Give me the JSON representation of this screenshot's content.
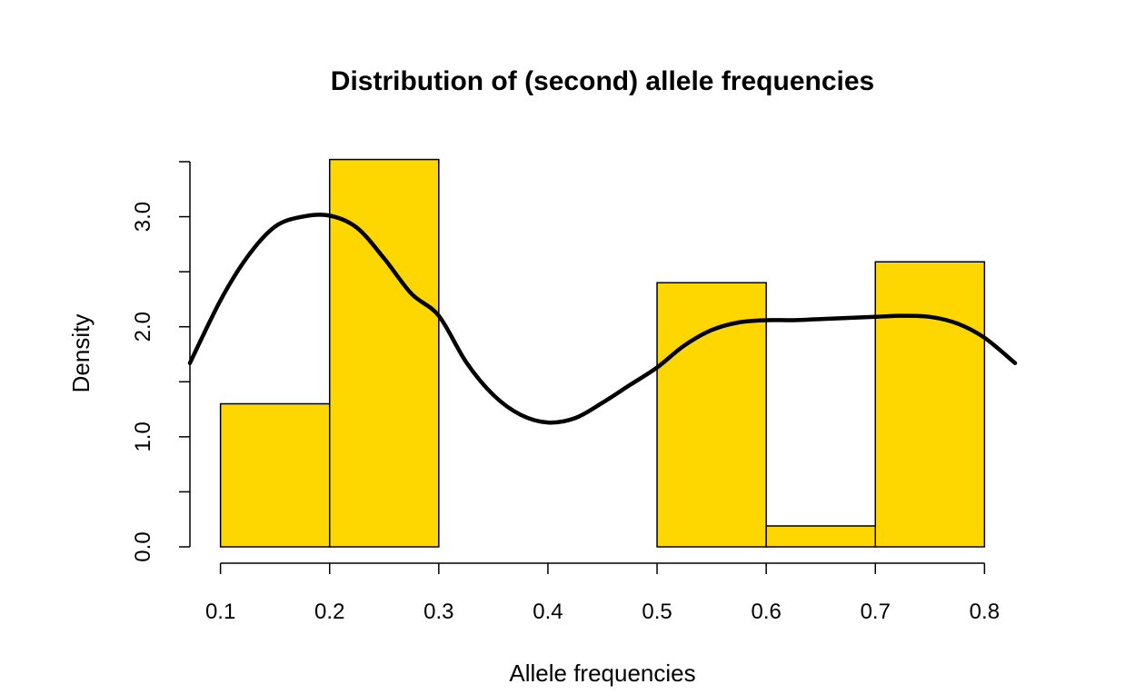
{
  "chart_data": {
    "type": "bar",
    "title": "Distribution of (second) allele frequencies",
    "xlabel": "Allele frequencies",
    "ylabel": "Density",
    "bar_color": "#FFD700",
    "bar_border_color": "#000000",
    "line_color": "#000000",
    "xlim": [
      0.072,
      0.828
    ],
    "ylim": [
      0,
      3.5
    ],
    "x_ticks": [
      0.1,
      0.2,
      0.3,
      0.4,
      0.5,
      0.6,
      0.7,
      0.8
    ],
    "x_tick_labels": [
      "0.1",
      "0.2",
      "0.3",
      "0.4",
      "0.5",
      "0.6",
      "0.7",
      "0.8"
    ],
    "y_ticks": [
      0,
      0.5,
      1.0,
      1.5,
      2.0,
      2.5,
      3.0,
      3.5
    ],
    "y_tick_labels": [
      "0.0",
      "",
      "1.0",
      "",
      "2.0",
      "",
      "3.0",
      ""
    ],
    "grid": false,
    "histogram": {
      "bin_edges": [
        0.1,
        0.2,
        0.3,
        0.4,
        0.5,
        0.6,
        0.7,
        0.8
      ],
      "values": [
        1.3,
        3.52,
        0.0,
        0.0,
        2.4,
        0.19,
        2.59
      ]
    },
    "density_curve": {
      "x": [
        0.072,
        0.1,
        0.125,
        0.15,
        0.175,
        0.2,
        0.225,
        0.25,
        0.275,
        0.3,
        0.325,
        0.35,
        0.375,
        0.4,
        0.425,
        0.45,
        0.475,
        0.5,
        0.525,
        0.55,
        0.575,
        0.6,
        0.625,
        0.65,
        0.675,
        0.7,
        0.725,
        0.75,
        0.775,
        0.8,
        0.828
      ],
      "y": [
        1.67,
        2.24,
        2.64,
        2.91,
        3.0,
        3.01,
        2.9,
        2.62,
        2.3,
        2.1,
        1.68,
        1.38,
        1.2,
        1.13,
        1.17,
        1.31,
        1.47,
        1.63,
        1.83,
        1.97,
        2.04,
        2.06,
        2.06,
        2.07,
        2.08,
        2.09,
        2.1,
        2.09,
        2.03,
        1.9,
        1.67
      ]
    }
  }
}
